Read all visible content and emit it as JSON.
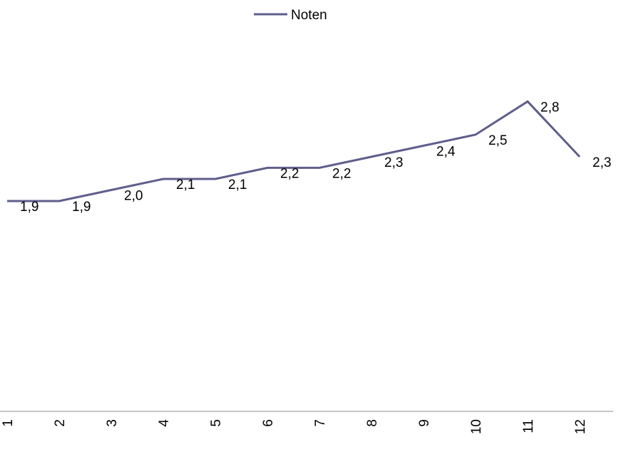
{
  "chart_data": {
    "type": "line",
    "categories": [
      "1",
      "2",
      "3",
      "4",
      "5",
      "6",
      "7",
      "8",
      "9",
      "10",
      "11",
      "12"
    ],
    "series": [
      {
        "name": "Noten",
        "values": [
          1.9,
          1.9,
          2.0,
          2.1,
          2.1,
          2.2,
          2.2,
          2.3,
          2.4,
          2.5,
          2.8,
          2.3
        ],
        "data_labels": [
          "1,9",
          "1,9",
          "2,0",
          "2,1",
          "2,1",
          "2,2",
          "2,2",
          "2,3",
          "2,4",
          "2,5",
          "2,8",
          "2,3"
        ],
        "color": "#5f5e8c"
      }
    ],
    "title": "",
    "xlabel": "",
    "ylabel": "",
    "ylim": [
      0,
      3
    ],
    "legend": "top-center",
    "grid": false
  },
  "colors": {
    "series_line": "#5f5e8c",
    "axis_line": "#8c8c8c"
  }
}
